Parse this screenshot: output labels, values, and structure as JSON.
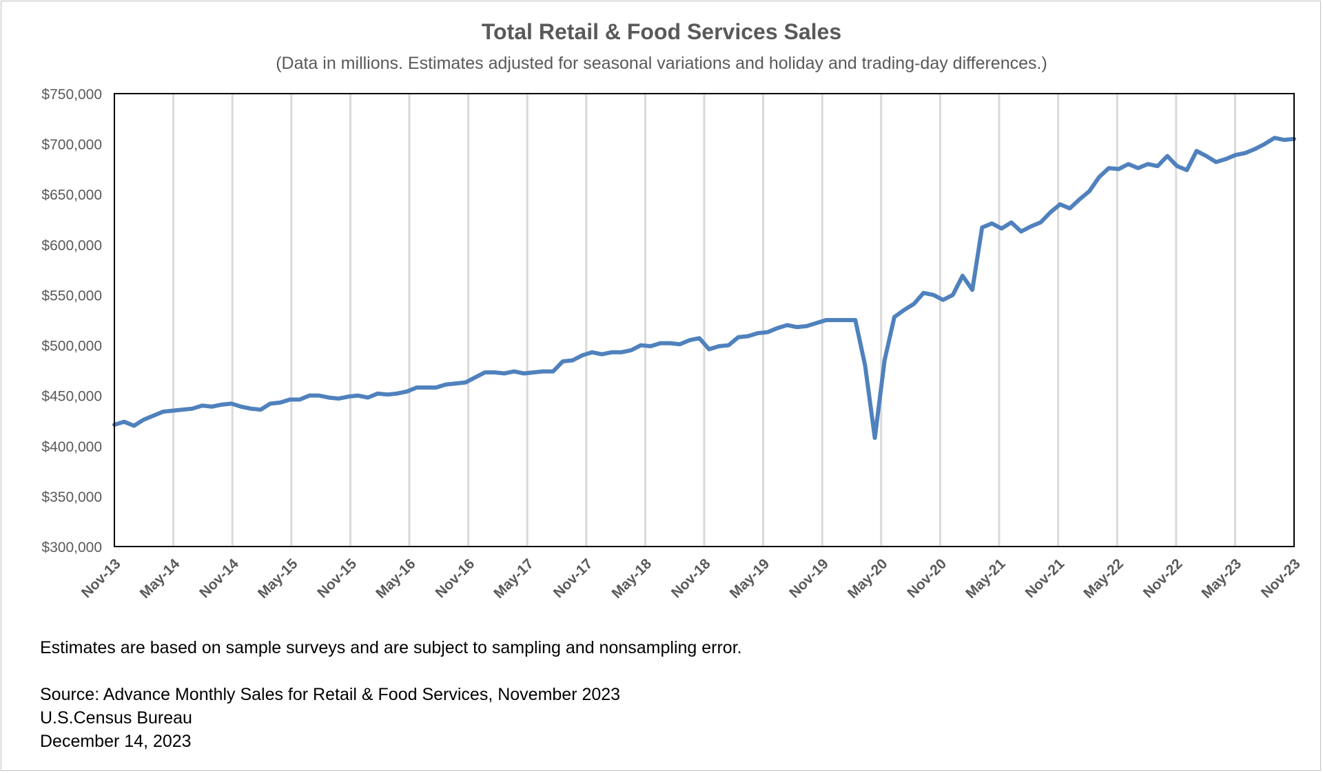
{
  "chart_data": {
    "type": "line",
    "title": "Total Retail & Food Services Sales",
    "subtitle": "(Data in millions. Estimates adjusted for seasonal variations and holiday and trading-day differences.)",
    "xlabel": "",
    "ylabel": "",
    "ylim": [
      300000,
      750000
    ],
    "y_ticks": [
      300000,
      350000,
      400000,
      450000,
      500000,
      550000,
      600000,
      650000,
      700000,
      750000
    ],
    "y_tick_labels": [
      "$300,000",
      "$350,000",
      "$400,000",
      "$450,000",
      "$500,000",
      "$550,000",
      "$600,000",
      "$650,000",
      "$700,000",
      "$750,000"
    ],
    "x_tick_labels": [
      "Nov-13",
      "May-14",
      "Nov-14",
      "May-15",
      "Nov-15",
      "May-16",
      "Nov-16",
      "May-17",
      "Nov-17",
      "May-18",
      "Nov-18",
      "May-19",
      "Nov-19",
      "May-20",
      "Nov-20",
      "May-21",
      "Nov-21",
      "May-22",
      "Nov-22",
      "May-23",
      "Nov-23"
    ],
    "x_start": "Nov-13",
    "x_end": "Nov-23",
    "grid": "vertical",
    "legend": "none",
    "series": [
      {
        "name": "Total Retail & Food Services Sales",
        "color": "#4f81bd",
        "values": [
          421000,
          424000,
          420000,
          426000,
          430000,
          434000,
          435000,
          436000,
          437000,
          440000,
          439000,
          441000,
          442000,
          439000,
          437000,
          436000,
          442000,
          443000,
          446000,
          446000,
          450000,
          450000,
          448000,
          447000,
          449000,
          450000,
          448000,
          452000,
          451000,
          452000,
          454000,
          458000,
          458000,
          458000,
          461000,
          462000,
          463000,
          468000,
          473000,
          473000,
          472000,
          474000,
          472000,
          473000,
          474000,
          474000,
          484000,
          485000,
          490000,
          493000,
          491000,
          493000,
          493000,
          495000,
          500000,
          499000,
          502000,
          502000,
          501000,
          505000,
          507000,
          496000,
          499000,
          500000,
          508000,
          509000,
          512000,
          513000,
          517000,
          520000,
          518000,
          519000,
          522000,
          525000,
          525000,
          525000,
          525000,
          480000,
          408000,
          485000,
          528000,
          535000,
          541000,
          552000,
          550000,
          545000,
          550000,
          569000,
          555000,
          617000,
          621000,
          616000,
          622000,
          613000,
          618000,
          622000,
          632000,
          640000,
          636000,
          645000,
          653000,
          667000,
          676000,
          675000,
          680000,
          676000,
          680000,
          678000,
          688000,
          678000,
          674000,
          693000,
          688000,
          682000,
          685000,
          689000,
          691000,
          695000,
          700000,
          706000,
          704000,
          705000
        ]
      }
    ]
  },
  "notes": {
    "line1": "Estimates are based on sample surveys and are subject to sampling and nonsampling error.",
    "line2": "Source: Advance Monthly Sales for Retail & Food Services, November 2023",
    "line3": "U.S.Census Bureau",
    "line4": "December 14, 2023"
  }
}
